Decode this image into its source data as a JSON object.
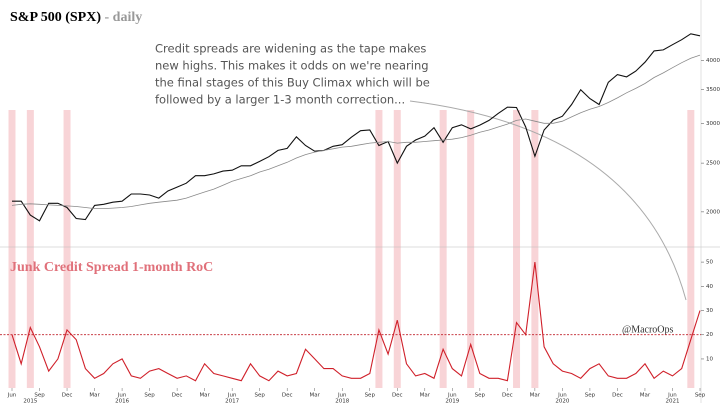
{
  "chart_data": [
    {
      "type": "line",
      "title": "S&P 500 (SPX)",
      "subtitle": "- daily",
      "annotation": [
        "Credit spreads are widening as the tape makes",
        "new highs. This makes it odds on we're nearing",
        "the final stages of this Buy Climax which will be",
        "followed by a larger 1-3 month correction..."
      ],
      "log_scale": true,
      "ylim": [
        1750,
        4600
      ],
      "yticks": [
        2000,
        2500,
        3000,
        3500,
        4000
      ],
      "x": [
        "2015-06",
        "2015-07",
        "2015-08",
        "2015-09",
        "2015-10",
        "2015-11",
        "2015-12",
        "2016-01",
        "2016-02",
        "2016-03",
        "2016-04",
        "2016-05",
        "2016-06",
        "2016-07",
        "2016-08",
        "2016-09",
        "2016-10",
        "2016-11",
        "2016-12",
        "2017-01",
        "2017-02",
        "2017-03",
        "2017-04",
        "2017-05",
        "2017-06",
        "2017-07",
        "2017-08",
        "2017-09",
        "2017-10",
        "2017-11",
        "2017-12",
        "2018-01",
        "2018-02",
        "2018-03",
        "2018-04",
        "2018-05",
        "2018-06",
        "2018-07",
        "2018-08",
        "2018-09",
        "2018-10",
        "2018-11",
        "2018-12",
        "2019-01",
        "2019-02",
        "2019-03",
        "2019-04",
        "2019-05",
        "2019-06",
        "2019-07",
        "2019-08",
        "2019-09",
        "2019-10",
        "2019-11",
        "2019-12",
        "2020-01",
        "2020-02",
        "2020-03",
        "2020-04",
        "2020-05",
        "2020-06",
        "2020-07",
        "2020-08",
        "2020-09",
        "2020-10",
        "2020-11",
        "2020-12",
        "2021-01",
        "2021-02",
        "2021-03",
        "2021-04",
        "2021-05",
        "2021-06",
        "2021-07",
        "2021-08",
        "2021-09"
      ],
      "series": [
        {
          "color": "#111111",
          "values": [
            2100,
            2100,
            1970,
            1920,
            2080,
            2080,
            2040,
            1940,
            1930,
            2060,
            2070,
            2090,
            2100,
            2170,
            2170,
            2160,
            2130,
            2200,
            2240,
            2280,
            2360,
            2360,
            2380,
            2410,
            2420,
            2470,
            2470,
            2520,
            2575,
            2650,
            2675,
            2820,
            2710,
            2640,
            2650,
            2700,
            2720,
            2815,
            2900,
            2910,
            2710,
            2760,
            2500,
            2700,
            2780,
            2830,
            2940,
            2750,
            2940,
            2980,
            2925,
            2975,
            3040,
            3140,
            3230,
            3225,
            2950,
            2580,
            2910,
            3045,
            3100,
            3270,
            3500,
            3360,
            3270,
            3620,
            3750,
            3710,
            3810,
            3970,
            4180,
            4200,
            4300,
            4400,
            4520,
            4480
          ]
        },
        {
          "color": "#8a8a8a",
          "values": [
            2060,
            2070,
            2075,
            2070,
            2065,
            2060,
            2055,
            2050,
            2040,
            2030,
            2030,
            2035,
            2040,
            2050,
            2065,
            2080,
            2090,
            2100,
            2110,
            2130,
            2160,
            2190,
            2220,
            2260,
            2300,
            2330,
            2360,
            2400,
            2430,
            2470,
            2510,
            2560,
            2600,
            2630,
            2650,
            2670,
            2690,
            2700,
            2720,
            2740,
            2750,
            2760,
            2740,
            2750,
            2750,
            2760,
            2770,
            2780,
            2790,
            2810,
            2840,
            2880,
            2910,
            2950,
            2990,
            3040,
            3060,
            3030,
            3000,
            3000,
            3030,
            3090,
            3150,
            3200,
            3240,
            3300,
            3370,
            3450,
            3520,
            3600,
            3700,
            3780,
            3870,
            3960,
            4040,
            4100
          ]
        }
      ]
    },
    {
      "type": "line",
      "title": "Junk Credit Spread 1-month RoC",
      "source": "@MacroOps",
      "ylim": [
        -2,
        55
      ],
      "yticks": [
        10,
        20,
        30,
        40,
        50
      ],
      "threshold": 20,
      "threshold_color": "#c0202a",
      "band_color": "#f5c6c9",
      "bands": [
        "2015-06",
        "2015-08",
        "2015-12",
        "2018-10",
        "2018-12",
        "2019-05",
        "2019-08",
        "2020-01",
        "2020-03",
        "2021-08"
      ],
      "xticks": [
        {
          "value": "2015-06",
          "label": "Jun"
        },
        {
          "value": "2015-09",
          "label": "Sep"
        },
        {
          "value": "2015-12",
          "label": "Dec"
        },
        {
          "value": "2016-03",
          "label": "Mar"
        },
        {
          "value": "2016-06",
          "label": "Jun"
        },
        {
          "value": "2016-09",
          "label": "Sep"
        },
        {
          "value": "2016-12",
          "label": "Dec"
        },
        {
          "value": "2017-03",
          "label": "Mar"
        },
        {
          "value": "2017-06",
          "label": "Jun"
        },
        {
          "value": "2017-09",
          "label": "Sep"
        },
        {
          "value": "2017-12",
          "label": "Dec"
        },
        {
          "value": "2018-03",
          "label": "Mar"
        },
        {
          "value": "2018-06",
          "label": "Jun"
        },
        {
          "value": "2018-09",
          "label": "Sep"
        },
        {
          "value": "2018-12",
          "label": "Dec"
        },
        {
          "value": "2019-03",
          "label": "Mar"
        },
        {
          "value": "2019-06",
          "label": "Jun"
        },
        {
          "value": "2019-09",
          "label": "Sep"
        },
        {
          "value": "2019-12",
          "label": "Dec"
        },
        {
          "value": "2020-03",
          "label": "Mar"
        },
        {
          "value": "2020-06",
          "label": "Jun"
        },
        {
          "value": "2020-09",
          "label": "Sep"
        },
        {
          "value": "2020-12",
          "label": "Dec"
        },
        {
          "value": "2021-03",
          "label": "Mar"
        },
        {
          "value": "2021-06",
          "label": "Jun"
        },
        {
          "value": "2021-09",
          "label": "Sep"
        }
      ],
      "xyears": [
        {
          "value": "2015-08",
          "label": "2015"
        },
        {
          "value": "2016-06",
          "label": "2016"
        },
        {
          "value": "2017-06",
          "label": "2017"
        },
        {
          "value": "2018-06",
          "label": "2018"
        },
        {
          "value": "2019-06",
          "label": "2019"
        },
        {
          "value": "2020-06",
          "label": "2020"
        },
        {
          "value": "2021-06",
          "label": "2021"
        }
      ],
      "series": [
        {
          "color": "#d0202a",
          "values": [
            20,
            8,
            23,
            15,
            5,
            10,
            22,
            18,
            6,
            2,
            4,
            8,
            10,
            3,
            2,
            5,
            6,
            4,
            2,
            3,
            1,
            8,
            4,
            3,
            2,
            1,
            8,
            3,
            1,
            5,
            3,
            4,
            14,
            10,
            6,
            6,
            3,
            2,
            2,
            4,
            22,
            12,
            26,
            8,
            3,
            4,
            2,
            14,
            6,
            3,
            16,
            4,
            2,
            2,
            1,
            25,
            20,
            50,
            15,
            8,
            5,
            4,
            2,
            6,
            8,
            3,
            2,
            2,
            4,
            8,
            2,
            5,
            3,
            6,
            18,
            30
          ]
        }
      ]
    }
  ]
}
